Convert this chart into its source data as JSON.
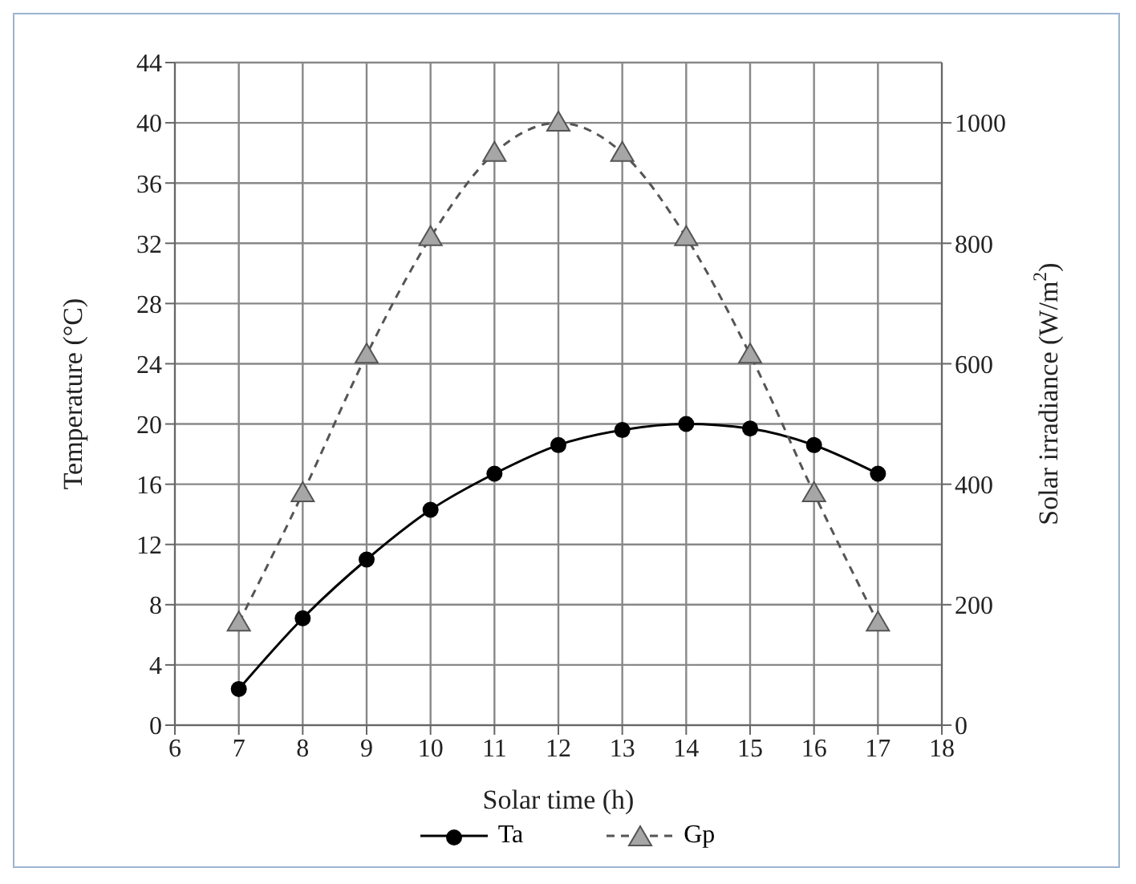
{
  "chart_data": {
    "type": "line",
    "xlabel": "Solar time (h)",
    "ylabel": "Temperature (°C)",
    "y2label": "Solar irradiance (W/m$^{2}$)",
    "x": [
      7,
      8,
      9,
      10,
      11,
      12,
      13,
      14,
      15,
      16,
      17
    ],
    "series": [
      {
        "name": "Ta",
        "color": "#000000",
        "marker": "circle",
        "line_style": "solid",
        "values": [
          2.4,
          7.1,
          11,
          14.3,
          16.7,
          18.6,
          19.6,
          20,
          19.7,
          18.6,
          16.7
        ]
      },
      {
        "name": "Gp",
        "color": "#555555",
        "marker": "triangle",
        "line_style": "dashed",
        "axis": "y2",
        "values": [
          170,
          385,
          615,
          810,
          950,
          1000,
          950,
          810,
          615,
          385,
          170
        ]
      }
    ],
    "xlim": [
      6,
      18
    ],
    "xticks": [
      6,
      7,
      8,
      9,
      10,
      11,
      12,
      13,
      14,
      15,
      16,
      17,
      18
    ],
    "ylim": [
      0,
      44
    ],
    "yticks": [
      0,
      4,
      8,
      12,
      16,
      20,
      24,
      28,
      32,
      36,
      40,
      44
    ],
    "y2lim": [
      0,
      1100
    ],
    "y2ticks": [
      0,
      200,
      400,
      600,
      800,
      1000
    ],
    "grid": true,
    "legend": "bottom"
  }
}
